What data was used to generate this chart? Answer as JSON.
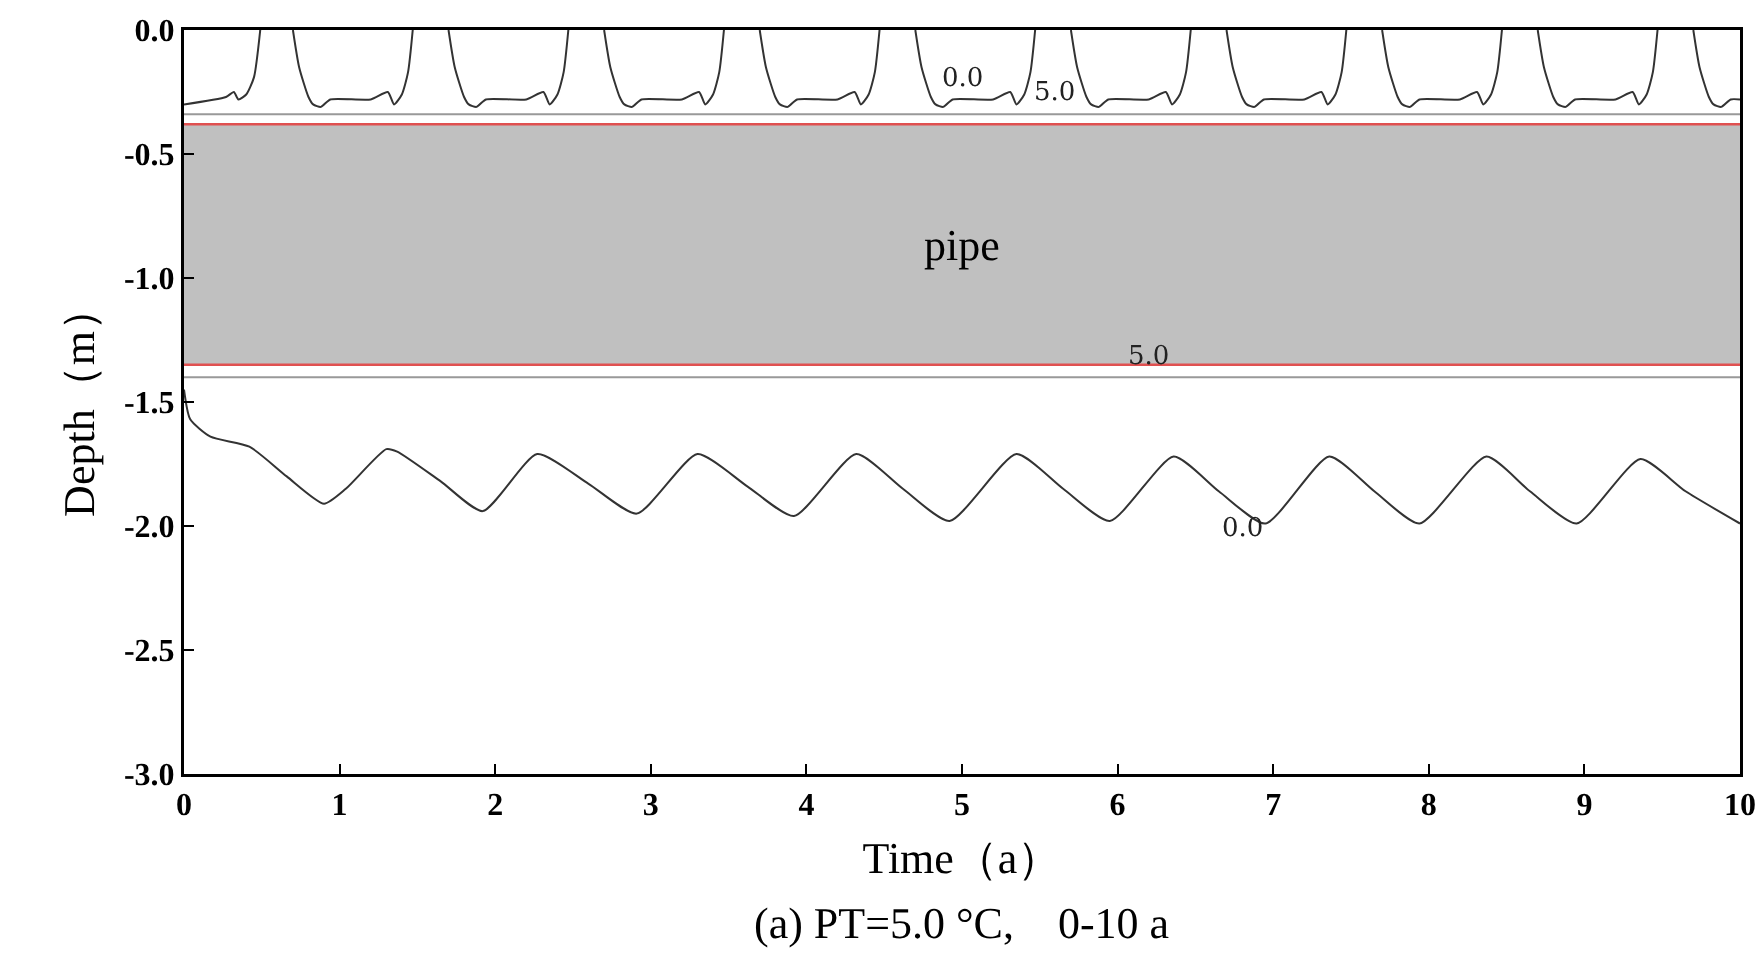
{
  "chart_data": {
    "type": "line",
    "xlabel": "Time（a）",
    "ylabel": "Depth（m）",
    "xlim": [
      0,
      10
    ],
    "xticks": [
      0,
      1,
      2,
      3,
      4,
      5,
      6,
      7,
      8,
      9,
      10
    ],
    "ylim": [
      -3.0,
      0.0
    ],
    "yticks": [
      {
        "value": -3.0,
        "label": "-3.0"
      },
      {
        "value": -2.5,
        "label": "-2.5"
      },
      {
        "value": -2.0,
        "label": "-2.0"
      },
      {
        "value": -1.5,
        "label": "-1.5"
      },
      {
        "value": -1.0,
        "label": "-1.0"
      },
      {
        "value": -0.5,
        "label": "-0.5"
      },
      {
        "value": 0.0,
        "label": "0.0"
      }
    ],
    "grid": false,
    "legend": false,
    "marker": "none",
    "line_style": "solid",
    "bands": [
      {
        "axis": "y",
        "from": -1.35,
        "to": -0.38,
        "label": "pipe",
        "color": "#c0c0c0"
      }
    ],
    "ref_lines": [
      {
        "axis": "y",
        "value": -0.38,
        "color": "#e05050"
      },
      {
        "axis": "y",
        "value": -1.35,
        "color": "#e05050"
      }
    ],
    "series": [
      {
        "name": "0.0",
        "color": "#333333",
        "x": [
          0,
          0.27,
          0.32,
          0.35,
          0.4,
          0.45,
          0.49,
          0.6,
          0.7,
          0.74,
          0.8,
          0.83,
          0.88,
          0.94,
          1.2,
          1.31,
          1.35,
          1.4,
          1.44,
          1.47,
          1.6,
          1.7,
          1.74,
          1.8,
          1.83,
          1.88,
          1.94,
          2.2,
          2.31,
          2.35,
          2.4,
          2.44,
          2.47,
          2.6,
          2.7,
          2.74,
          2.8,
          2.83,
          2.88,
          2.94,
          3.2,
          3.31,
          3.35,
          3.4,
          3.44,
          3.47,
          3.6,
          3.7,
          3.74,
          3.8,
          3.83,
          3.88,
          3.94,
          4.2,
          4.31,
          4.35,
          4.4,
          4.44,
          4.47,
          4.6,
          4.7,
          4.74,
          4.8,
          4.83,
          4.88,
          4.94,
          5.2,
          5.31,
          5.35,
          5.4,
          5.44,
          5.47,
          5.6,
          5.7,
          5.74,
          5.8,
          5.83,
          5.88,
          5.94,
          6.2,
          6.31,
          6.35,
          6.4,
          6.44,
          6.47,
          6.6,
          6.7,
          6.74,
          6.8,
          6.83,
          6.88,
          6.94,
          7.2,
          7.31,
          7.35,
          7.4,
          7.44,
          7.47,
          7.6,
          7.7,
          7.74,
          7.8,
          7.83,
          7.88,
          7.94,
          8.2,
          8.31,
          8.35,
          8.4,
          8.44,
          8.47,
          8.6,
          8.7,
          8.74,
          8.8,
          8.83,
          8.88,
          8.94,
          9.2,
          9.31,
          9.35,
          9.4,
          9.44,
          9.47,
          9.6,
          9.7,
          9.74,
          9.8,
          9.83,
          9.88,
          9.94,
          10
        ],
        "values": [
          -0.3,
          -0.27,
          -0.25,
          -0.28,
          -0.26,
          -0.19,
          0,
          null,
          0,
          -0.15,
          -0.27,
          -0.3,
          -0.31,
          -0.28,
          -0.28,
          -0.25,
          -0.3,
          -0.26,
          -0.17,
          0,
          null,
          0,
          -0.15,
          -0.27,
          -0.3,
          -0.31,
          -0.28,
          -0.28,
          -0.25,
          -0.3,
          -0.26,
          -0.17,
          0,
          null,
          0,
          -0.15,
          -0.27,
          -0.3,
          -0.31,
          -0.28,
          -0.28,
          -0.25,
          -0.3,
          -0.26,
          -0.17,
          0,
          null,
          0,
          -0.15,
          -0.27,
          -0.3,
          -0.31,
          -0.28,
          -0.28,
          -0.25,
          -0.3,
          -0.26,
          -0.17,
          0,
          null,
          0,
          -0.15,
          -0.27,
          -0.3,
          -0.31,
          -0.28,
          -0.28,
          -0.25,
          -0.3,
          -0.26,
          -0.17,
          0,
          null,
          0,
          -0.15,
          -0.27,
          -0.3,
          -0.31,
          -0.28,
          -0.28,
          -0.25,
          -0.3,
          -0.26,
          -0.17,
          0,
          null,
          0,
          -0.15,
          -0.27,
          -0.3,
          -0.31,
          -0.28,
          -0.28,
          -0.25,
          -0.3,
          -0.26,
          -0.17,
          0,
          null,
          0,
          -0.15,
          -0.27,
          -0.3,
          -0.31,
          -0.28,
          -0.28,
          -0.25,
          -0.3,
          -0.26,
          -0.17,
          0,
          null,
          0,
          -0.15,
          -0.27,
          -0.3,
          -0.31,
          -0.28,
          -0.28,
          -0.25,
          -0.3,
          -0.26,
          -0.17,
          0,
          null,
          0,
          -0.15,
          -0.27,
          -0.3,
          -0.31,
          -0.28,
          -0.28
        ]
      },
      {
        "name": "5.0",
        "color": "#999999",
        "x": [
          0,
          10
        ],
        "values": [
          -0.34,
          -0.34
        ]
      },
      {
        "name": "5.0",
        "color": "#999999",
        "x": [
          0,
          10
        ],
        "values": [
          -1.4,
          -1.4
        ]
      },
      {
        "name": "0.0",
        "color": "#333333",
        "x": [
          0,
          0.04,
          0.17,
          0.42,
          0.66,
          0.9,
          1.04,
          1.3,
          1.37,
          1.65,
          1.92,
          2.27,
          2.6,
          2.91,
          3.3,
          3.62,
          3.92,
          4.32,
          4.62,
          4.92,
          5.35,
          5.65,
          5.95,
          6.36,
          6.65,
          6.95,
          7.36,
          7.65,
          7.94,
          8.37,
          8.65,
          8.95,
          9.36,
          9.65,
          10
        ],
        "values": [
          -1.45,
          -1.57,
          -1.64,
          -1.68,
          -1.8,
          -1.91,
          -1.85,
          -1.69,
          -1.7,
          -1.82,
          -1.94,
          -1.71,
          -1.83,
          -1.95,
          -1.71,
          -1.84,
          -1.96,
          -1.71,
          -1.85,
          -1.98,
          -1.71,
          -1.85,
          -1.98,
          -1.72,
          -1.86,
          -1.99,
          -1.72,
          -1.86,
          -1.99,
          -1.72,
          -1.86,
          -1.99,
          -1.73,
          -1.86,
          -1.99
        ]
      }
    ],
    "annotations": [
      "(a) PT=5.0 °C,    0-10 a"
    ]
  }
}
